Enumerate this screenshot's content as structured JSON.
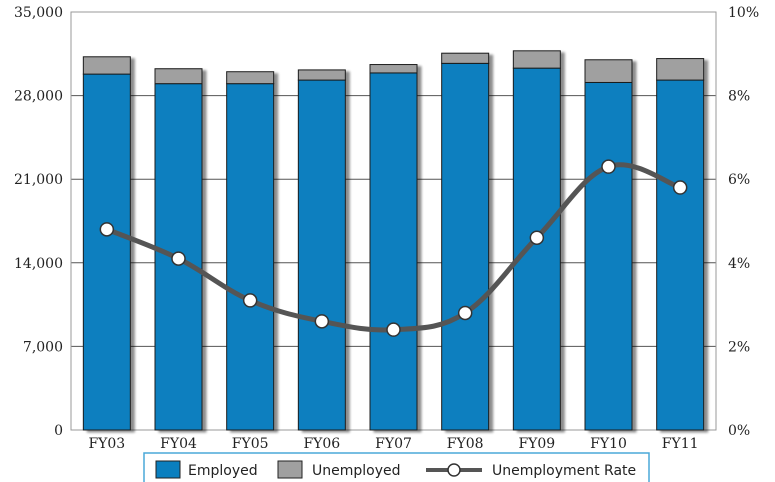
{
  "chart_data": {
    "type": "bar",
    "stacked": true,
    "categories": [
      "FY03",
      "FY04",
      "FY05",
      "FY06",
      "FY07",
      "FY08",
      "FY09",
      "FY10",
      "FY11"
    ],
    "series": [
      {
        "name": "Employed",
        "axis": "left",
        "color": "#0a7fbf",
        "values": [
          29800,
          29000,
          29000,
          29300,
          29900,
          30700,
          30300,
          29100,
          29300
        ]
      },
      {
        "name": "Unemployed",
        "axis": "left",
        "color": "#a0a0a0",
        "values": [
          1450,
          1250,
          1000,
          850,
          700,
          850,
          1450,
          1900,
          1800
        ]
      },
      {
        "name": "Unemployment Rate",
        "axis": "right",
        "type": "line",
        "color": "#555555",
        "values": [
          4.8,
          4.1,
          3.1,
          2.6,
          2.4,
          2.8,
          4.6,
          6.3,
          5.8
        ]
      }
    ],
    "ylim_left": [
      0,
      35000
    ],
    "yticks_left": [
      "0",
      "7,000",
      "14,000",
      "21,000",
      "28,000",
      "35,000"
    ],
    "ylim_right": [
      0,
      10
    ],
    "yticks_right": [
      "0%",
      "2%",
      "4%",
      "6%",
      "8%",
      "10%"
    ],
    "grid": true,
    "legend_position": "bottom"
  }
}
